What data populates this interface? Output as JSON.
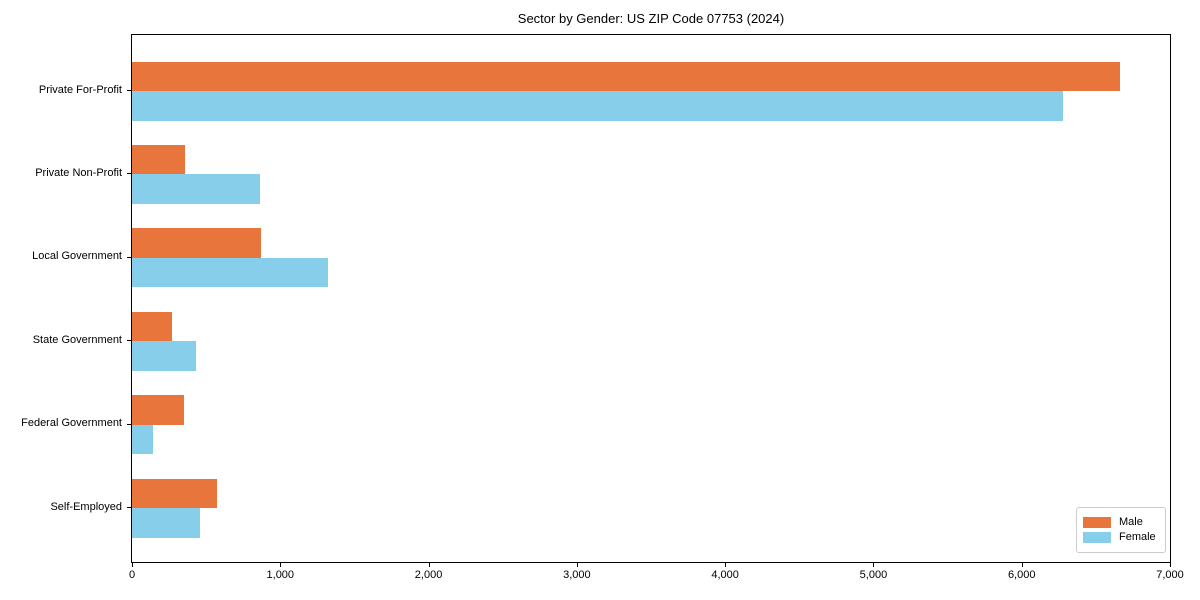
{
  "title": "Sector by Gender: US ZIP Code 07753 (2024)",
  "chart_data": {
    "type": "bar",
    "orientation": "horizontal",
    "title": "Sector by Gender: US ZIP Code 07753 (2024)",
    "categories": [
      "Private For-Profit",
      "Private Non-Profit",
      "Local Government",
      "State Government",
      "Federal Government",
      "Self-Employed"
    ],
    "series": [
      {
        "name": "Male",
        "color": "#e8763c",
        "values": [
          6660,
          360,
          870,
          270,
          350,
          570
        ]
      },
      {
        "name": "Female",
        "color": "#87ceeb",
        "values": [
          6280,
          860,
          1320,
          430,
          140,
          460
        ]
      }
    ],
    "xlabel": "",
    "ylabel": "",
    "xlim": [
      0,
      7000
    ],
    "x_ticks": [
      0,
      1000,
      2000,
      3000,
      4000,
      5000,
      6000,
      7000
    ],
    "x_tick_labels": [
      "0",
      "1,000",
      "2,000",
      "3,000",
      "4,000",
      "5,000",
      "6,000",
      "7,000"
    ],
    "grid": false,
    "legend_position": "lower right",
    "axis_color": "#000000",
    "legend_border_color": "#cccccc",
    "background_color": "#ffffff"
  }
}
